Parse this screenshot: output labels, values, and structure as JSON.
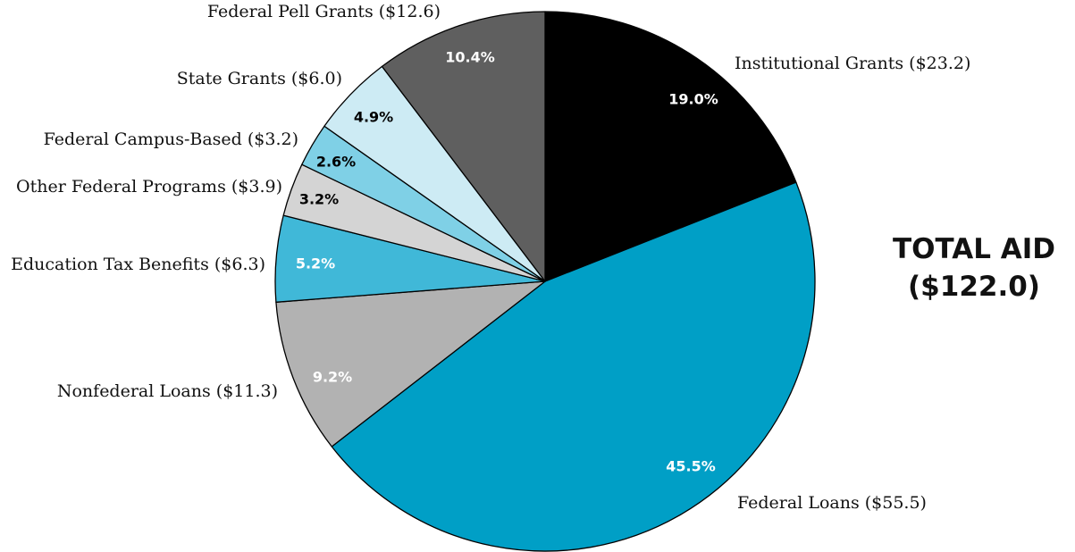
{
  "chart_data": {
    "type": "pie",
    "title": "TOTAL AID",
    "total_label": "($122.0)",
    "slices": [
      {
        "label": "Institutional Grants ($23.2)",
        "percent": 19.0,
        "percent_label": "19.0%",
        "value": 23.2,
        "color": "#000000",
        "label_color": "#ffffff"
      },
      {
        "label": "Federal Loans ($55.5)",
        "percent": 45.5,
        "percent_label": "45.5%",
        "value": 55.5,
        "color": "#009fc6",
        "label_color": "#ffffff"
      },
      {
        "label": "Nonfederal Loans ($11.3)",
        "percent": 9.2,
        "percent_label": "9.2%",
        "value": 11.3,
        "color": "#b2b2b2",
        "label_color": "#ffffff"
      },
      {
        "label": "Education Tax Benefits ($6.3)",
        "percent": 5.2,
        "percent_label": "5.2%",
        "value": 6.3,
        "color": "#40b8d8",
        "label_color": "#ffffff"
      },
      {
        "label": "Other Federal Programs ($3.9)",
        "percent": 3.2,
        "percent_label": "3.2%",
        "value": 3.9,
        "color": "#d4d4d4",
        "label_color": "#000000"
      },
      {
        "label": "Federal Campus-Based ($3.2)",
        "percent": 2.6,
        "percent_label": "2.6%",
        "value": 3.2,
        "color": "#7fd0e6",
        "label_color": "#000000"
      },
      {
        "label": "State Grants ($6.0)",
        "percent": 4.9,
        "percent_label": "4.9%",
        "value": 6.0,
        "color": "#cdebf4",
        "label_color": "#000000"
      },
      {
        "label": "Federal Pell Grants ($12.6)",
        "percent": 10.4,
        "percent_label": "10.4%",
        "value": 12.6,
        "color": "#5f5f5f",
        "label_color": "#ffffff"
      }
    ]
  }
}
